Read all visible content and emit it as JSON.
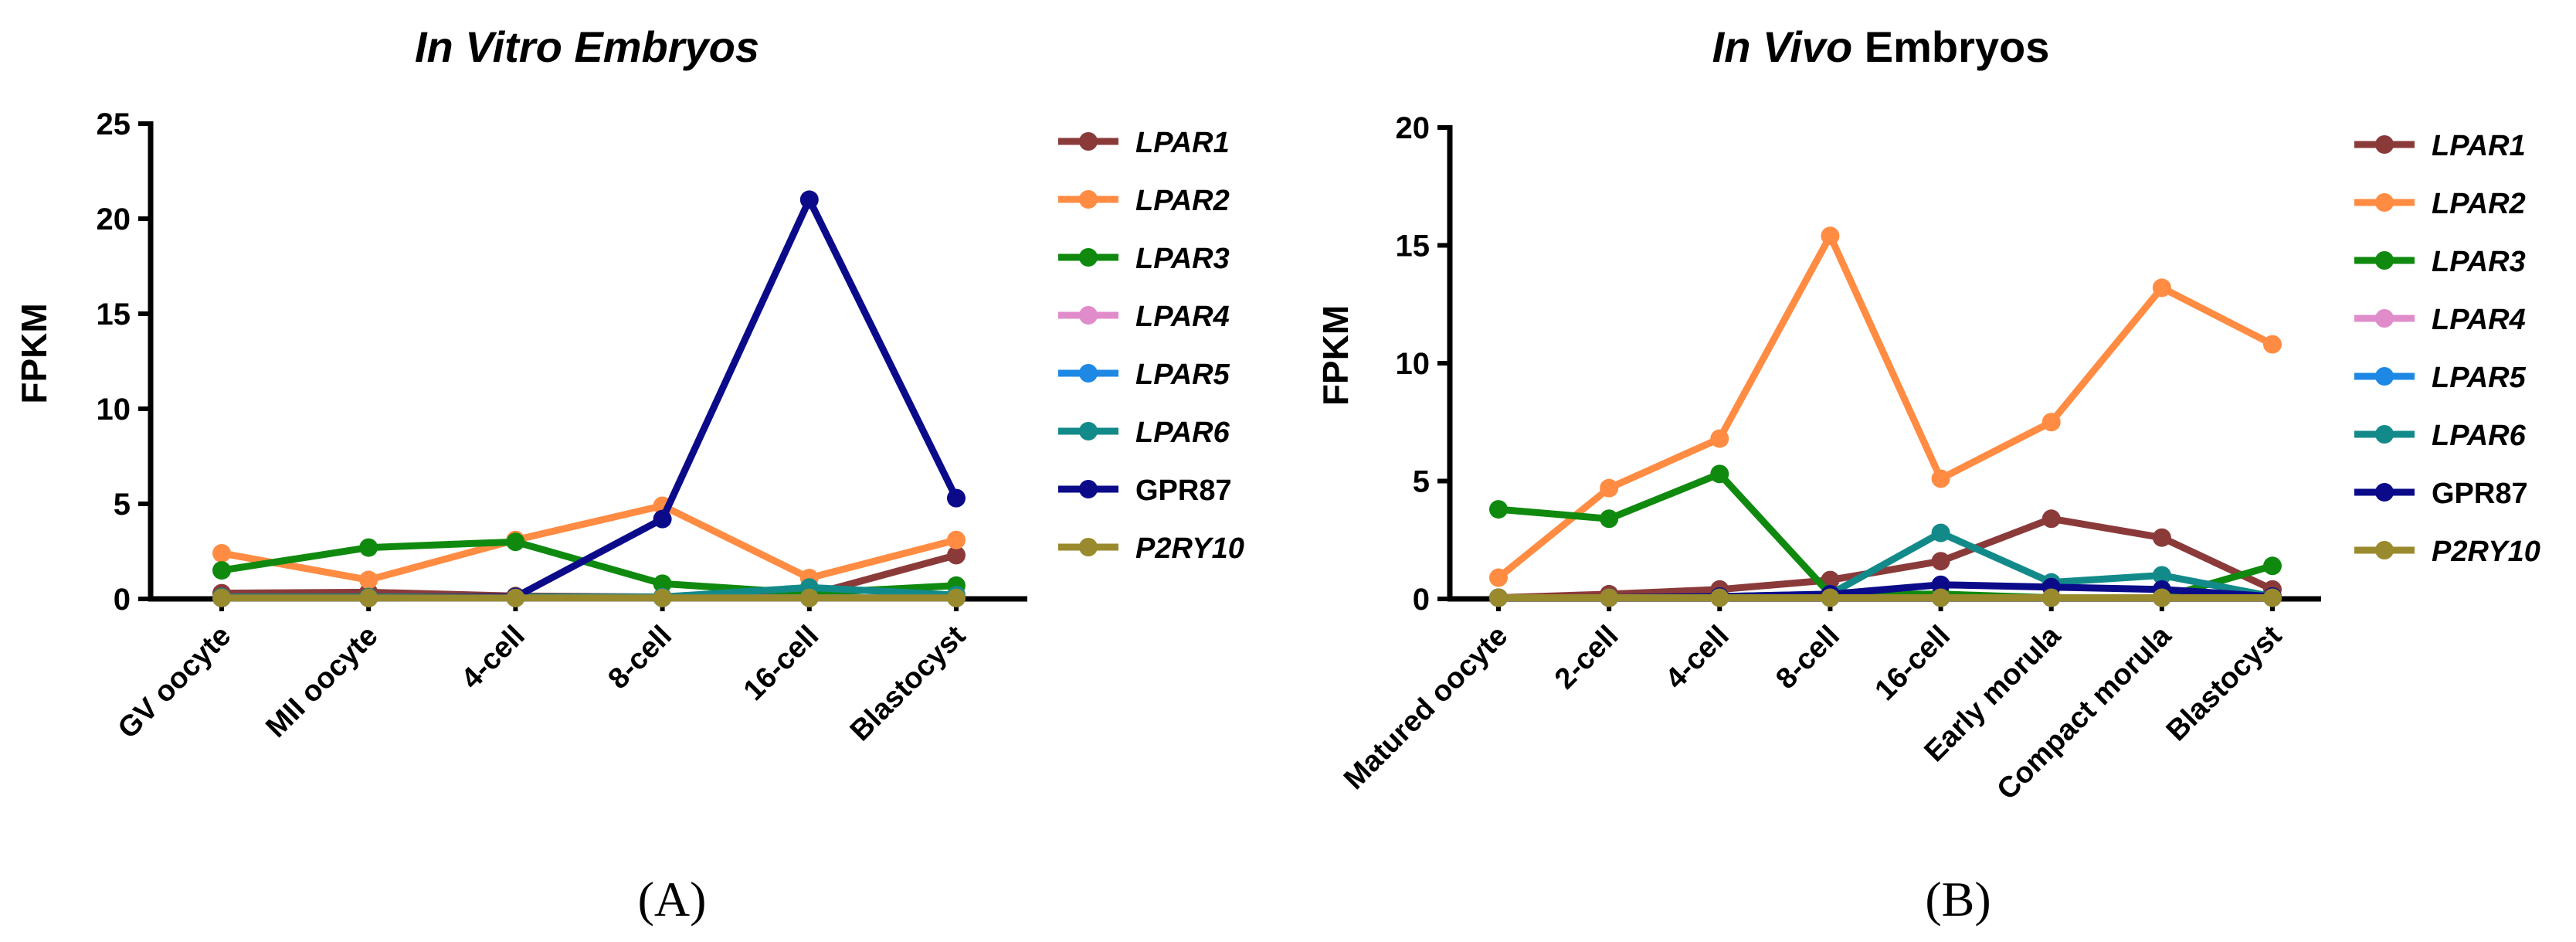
{
  "chart_data": [
    {
      "type": "line",
      "title_parts": [
        {
          "text": "In Vitro Embryos",
          "italic": true
        }
      ],
      "ylabel": "FPKM",
      "ylim": [
        0,
        25
      ],
      "yticks": [
        0,
        5,
        10,
        15,
        20,
        25
      ],
      "categories": [
        "GV oocyte",
        "MII oocyte",
        "4-cell",
        "8-cell",
        "16-cell",
        "Blastocyst"
      ],
      "panel_label": "(A)",
      "legend_position": "right",
      "series": [
        {
          "name": "LPAR1",
          "italic": true,
          "color": "#8B3A3A",
          "values": [
            0.3,
            0.35,
            0.15,
            0.1,
            0.2,
            2.3
          ]
        },
        {
          "name": "LPAR2",
          "italic": true,
          "color": "#FF8C42",
          "values": [
            2.4,
            1.0,
            3.1,
            4.9,
            1.1,
            3.1
          ]
        },
        {
          "name": "LPAR3",
          "italic": true,
          "color": "#0F8A0F",
          "values": [
            1.5,
            2.7,
            3.0,
            0.8,
            0.3,
            0.7
          ]
        },
        {
          "name": "LPAR4",
          "italic": true,
          "color": "#E08CCB",
          "values": [
            0.05,
            0.05,
            0.05,
            0.05,
            0.05,
            0.05
          ]
        },
        {
          "name": "LPAR5",
          "italic": true,
          "color": "#1E88E5",
          "values": [
            0.05,
            0.05,
            0.05,
            0.05,
            0.05,
            0.05
          ]
        },
        {
          "name": "LPAR6",
          "italic": true,
          "color": "#138A8A",
          "values": [
            0.1,
            0.1,
            0.1,
            0.1,
            0.6,
            0.2
          ]
        },
        {
          "name": "GPR87",
          "italic": false,
          "color": "#0B0B8A",
          "values": [
            0.05,
            0.05,
            0.1,
            4.2,
            21.0,
            5.3
          ]
        },
        {
          "name": "P2RY10",
          "italic": true,
          "color": "#9A8A2E",
          "values": [
            0.05,
            0.05,
            0.05,
            0.05,
            0.05,
            0.05
          ]
        }
      ]
    },
    {
      "type": "line",
      "title_parts": [
        {
          "text": "In Vivo",
          "italic": true
        },
        {
          "text": " Embryos",
          "italic": false
        }
      ],
      "ylabel": "FPKM",
      "ylim": [
        0,
        20
      ],
      "yticks": [
        0,
        5,
        10,
        15,
        20
      ],
      "categories": [
        "Matured oocyte",
        "2-cell",
        "4-cell",
        "8-cell",
        "16-cell",
        "Early morula",
        "Compact morula",
        "Blastocyst"
      ],
      "panel_label": "(B)",
      "legend_position": "right",
      "series": [
        {
          "name": "LPAR1",
          "italic": true,
          "color": "#8B3A3A",
          "values": [
            0.05,
            0.2,
            0.4,
            0.8,
            1.6,
            3.4,
            2.6,
            0.4
          ]
        },
        {
          "name": "LPAR2",
          "italic": true,
          "color": "#FF8C42",
          "values": [
            0.9,
            4.7,
            6.8,
            15.4,
            5.1,
            7.5,
            13.2,
            10.8
          ]
        },
        {
          "name": "LPAR3",
          "italic": true,
          "color": "#0F8A0F",
          "values": [
            3.8,
            3.4,
            5.3,
            0.2,
            0.2,
            0.05,
            0.05,
            1.4
          ]
        },
        {
          "name": "LPAR4",
          "italic": true,
          "color": "#E08CCB",
          "values": [
            0.05,
            0.05,
            0.05,
            0.05,
            0.05,
            0.05,
            0.05,
            0.05
          ]
        },
        {
          "name": "LPAR5",
          "italic": true,
          "color": "#1E88E5",
          "values": [
            0.05,
            0.05,
            0.05,
            0.05,
            0.05,
            0.05,
            0.05,
            0.05
          ]
        },
        {
          "name": "LPAR6",
          "italic": true,
          "color": "#138A8A",
          "values": [
            0.05,
            0.05,
            0.1,
            0.2,
            2.8,
            0.7,
            1.0,
            0.1
          ]
        },
        {
          "name": "GPR87",
          "italic": false,
          "color": "#0B0B8A",
          "values": [
            0.05,
            0.05,
            0.1,
            0.2,
            0.6,
            0.5,
            0.4,
            0.1
          ]
        },
        {
          "name": "P2RY10",
          "italic": true,
          "color": "#9A8A2E",
          "values": [
            0.05,
            0.05,
            0.05,
            0.05,
            0.05,
            0.05,
            0.05,
            0.05
          ]
        }
      ]
    }
  ]
}
